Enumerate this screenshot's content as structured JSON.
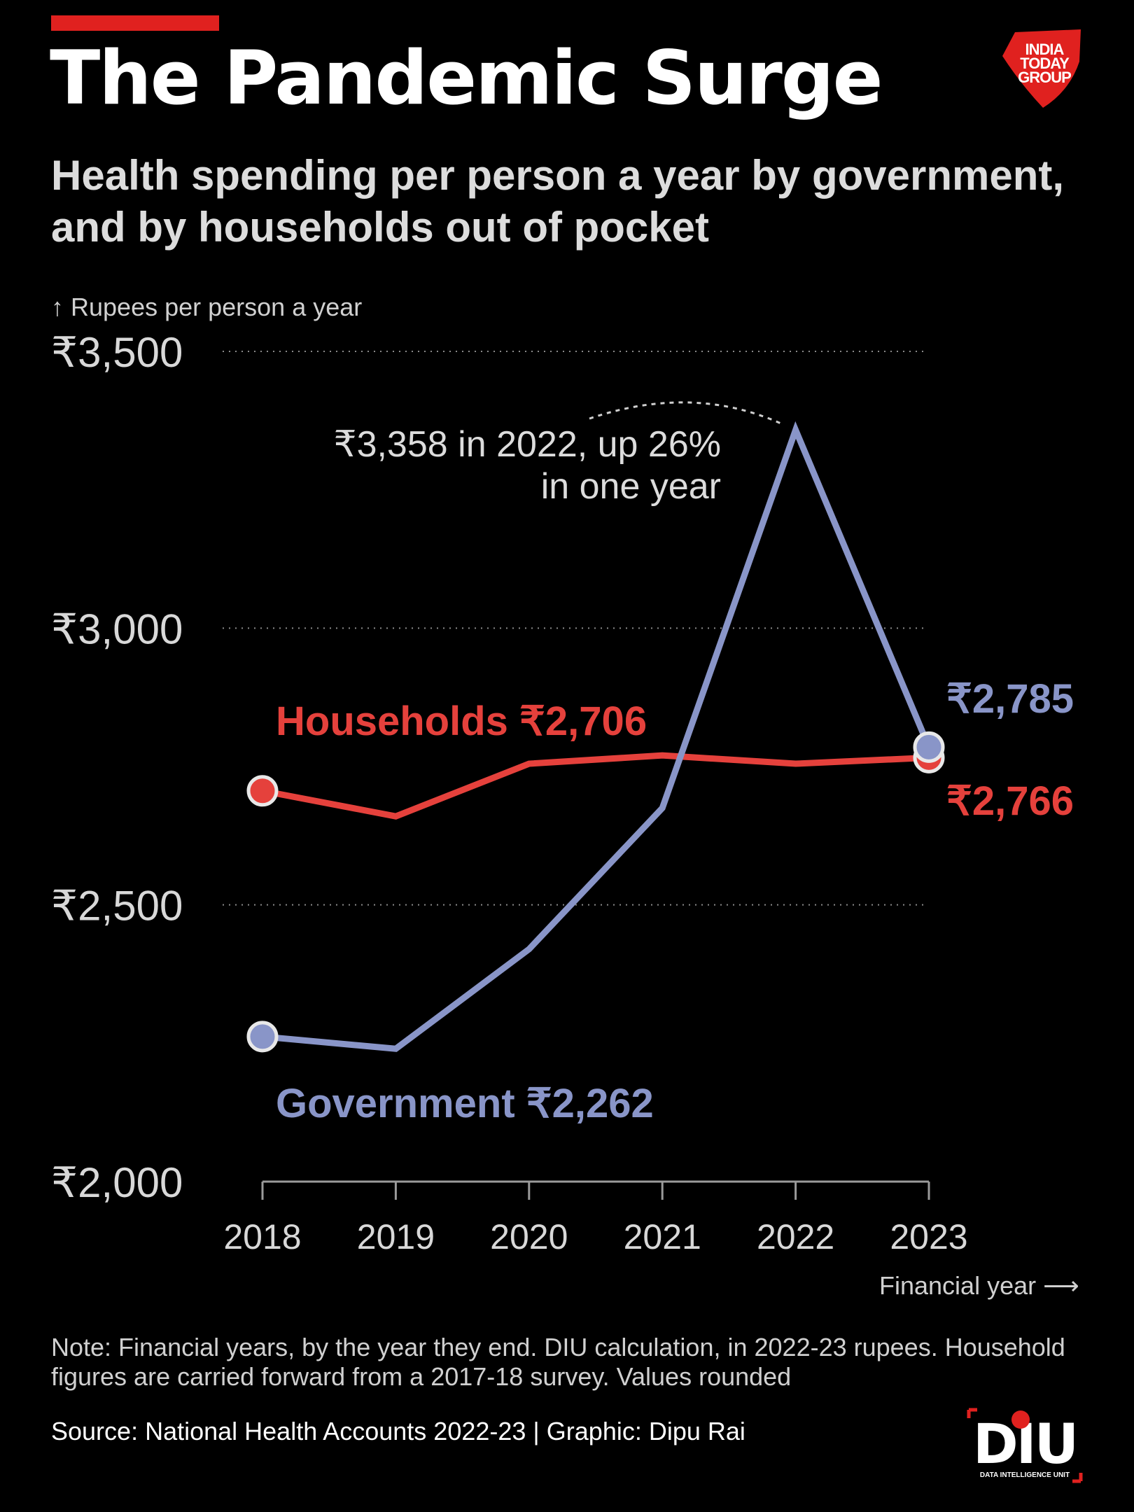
{
  "header": {
    "title": "The Pandemic Surge",
    "subtitle": "Health spending per person a year by government, and by households out of pocket"
  },
  "brand": {
    "publisher_logo": "INDIA TODAY GROUP",
    "publisher_lines": [
      "INDIA",
      "TODAY",
      "GROUP"
    ],
    "unit_logo": "DIU",
    "unit_logo_caption": "DATA INTELLIGENCE UNIT"
  },
  "chart_data": {
    "type": "line",
    "title": "The Pandemic Surge",
    "ylabel": "↑ Rupees per person a year",
    "xlabel": "Financial year ⟶",
    "x": [
      "2018",
      "2019",
      "2020",
      "2021",
      "2022",
      "2023"
    ],
    "ylim": [
      2000,
      3500
    ],
    "yticks": [
      3500,
      3000,
      2500,
      2000
    ],
    "ytick_labels": [
      "₹3,500",
      "₹3,000",
      "₹2,500",
      "₹2,000"
    ],
    "grid": "horizontal dotted",
    "series": [
      {
        "name": "Households",
        "values": [
          2706,
          2660,
          2755,
          2770,
          2755,
          2766
        ],
        "color": "#e5413c",
        "start_label": "Households ₹2,706",
        "end_label": "₹2,766"
      },
      {
        "name": "Government",
        "values": [
          2262,
          2240,
          2420,
          2675,
          3358,
          2785
        ],
        "color": "#8995c8",
        "start_label": "Government ₹2,262",
        "end_label": "₹2,785"
      }
    ],
    "annotation": {
      "lines": [
        "₹3,358 in 2022, up 26%",
        "in one year"
      ],
      "x": "2022",
      "y": 3358
    }
  },
  "footer": {
    "note": "Note: Financial years, by the year they end. DIU calculation, in 2022-23 rupees. Household figures are carried forward from a 2017-18 survey. Values rounded",
    "source": "Source: National Health Accounts 2022-23 | Graphic: Dipu Rai"
  }
}
